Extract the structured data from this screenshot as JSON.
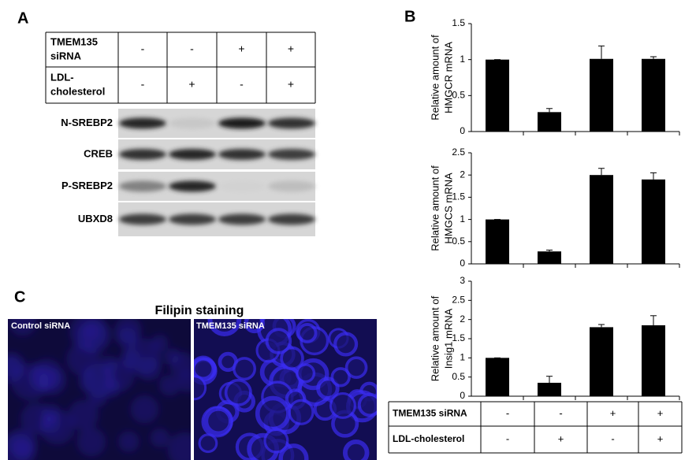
{
  "panel_a": {
    "label": "A",
    "table": {
      "rows": [
        {
          "label": [
            "TMEM135",
            "siRNA"
          ],
          "cells": [
            "-",
            "-",
            "+",
            "+"
          ]
        },
        {
          "label": [
            "LDL-",
            "cholesterol"
          ],
          "cells": [
            "-",
            "+",
            "-",
            "+"
          ]
        }
      ]
    },
    "blots": [
      "N-SREBP2",
      "CREB",
      "P-SREBP2",
      "UBXD8"
    ]
  },
  "panel_b": {
    "label": "B",
    "table": {
      "rows": [
        {
          "label": "TMEM135 siRNA",
          "cells": [
            "-",
            "-",
            "+",
            "+"
          ]
        },
        {
          "label": "LDL-cholesterol",
          "cells": [
            "-",
            "+",
            "-",
            "+"
          ]
        }
      ]
    }
  },
  "panel_c": {
    "label": "C",
    "title": "Filipin staining",
    "images": [
      "Control  siRNA",
      "TMEM135 siRNA"
    ]
  },
  "chart_data": [
    {
      "type": "bar",
      "ylabel": [
        "Relative amount of",
        "HMGCR mRNA"
      ],
      "categories": [
        null,
        null,
        null,
        null
      ],
      "values": [
        1,
        0.27,
        1.01,
        1.01
      ],
      "errors": [
        0,
        0.05,
        0.18,
        0.03
      ],
      "color": "#000000",
      "ylim": [
        0,
        1.5
      ],
      "yticks": [
        0,
        0.5,
        1,
        1.5
      ]
    },
    {
      "type": "bar",
      "ylabel": [
        "Relative amount of",
        "HMGCS mRNA"
      ],
      "categories": [
        null,
        null,
        null,
        null
      ],
      "values": [
        1,
        0.28,
        2.0,
        1.9
      ],
      "errors": [
        0,
        0.03,
        0.15,
        0.15
      ],
      "color": "#000000",
      "ylim": [
        0,
        2.5
      ],
      "yticks": [
        0,
        0.5,
        1,
        1.5,
        2,
        2.5
      ]
    },
    {
      "type": "bar",
      "ylabel": [
        "Relative amount of",
        "Insig1  mRNA"
      ],
      "categories": [
        null,
        null,
        null,
        null
      ],
      "values": [
        1,
        0.35,
        1.8,
        1.85
      ],
      "errors": [
        0,
        0.17,
        0.07,
        0.25
      ],
      "color": "#000000",
      "ylim": [
        0,
        3
      ],
      "yticks": [
        0,
        0.5,
        1,
        1.5,
        2,
        2.5,
        3
      ]
    }
  ]
}
